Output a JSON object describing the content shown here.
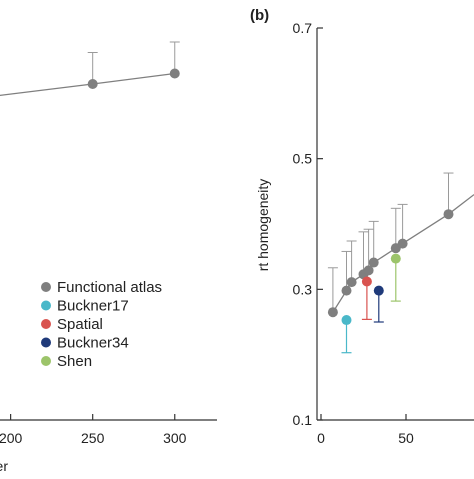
{
  "chart_data": [
    {
      "type": "line",
      "panel_label": "",
      "title": "",
      "xlabel": "er",
      "ylabel": "",
      "x_ticks": [
        200,
        250,
        300
      ],
      "xlim": [
        185,
        330
      ],
      "ylim": [
        0.0,
        0.8
      ],
      "series": [
        {
          "name": "Functional atlas",
          "color": "#7f7f7f",
          "x": [
            185,
            250,
            300
          ],
          "y": [
            0.615,
            0.64,
            0.66
          ],
          "err_upper": [
            0.68,
            0.7,
            0.72
          ]
        }
      ],
      "legend": {
        "placement": "bottom-right",
        "entries": [
          {
            "label": "Functional atlas",
            "color": "#7f7f7f"
          },
          {
            "label": "Buckner17",
            "color": "#4ab8c9"
          },
          {
            "label": "Spatial",
            "color": "#d9534f"
          },
          {
            "label": "Buckner34",
            "color": "#1f3a7a"
          },
          {
            "label": "Shen",
            "color": "#9cc46a"
          }
        ]
      }
    },
    {
      "type": "scatter",
      "panel_label": "(b)",
      "title": "",
      "xlabel": "",
      "ylabel": "rt homogeneity",
      "x_ticks": [
        0,
        50
      ],
      "y_ticks": [
        0.1,
        0.3,
        0.5,
        0.7
      ],
      "xlim": [
        0,
        90
      ],
      "ylim": [
        0.1,
        0.7
      ],
      "grid": false,
      "series": [
        {
          "name": "Functional atlas",
          "color": "#7f7f7f",
          "x": [
            7,
            15,
            18,
            25,
            28,
            31,
            44,
            48,
            75
          ],
          "y": [
            0.265,
            0.298,
            0.311,
            0.323,
            0.329,
            0.341,
            0.363,
            0.37,
            0.415
          ],
          "err_upper": [
            0.333,
            0.358,
            0.374,
            0.388,
            0.392,
            0.404,
            0.424,
            0.43,
            0.478
          ]
        },
        {
          "name": "Buckner17",
          "color": "#4ab8c9",
          "x": [
            15
          ],
          "y": [
            0.253
          ],
          "err_lower": [
            0.203
          ]
        },
        {
          "name": "Spatial",
          "color": "#d9534f",
          "x": [
            27
          ],
          "y": [
            0.312
          ],
          "err_lower": [
            0.254
          ]
        },
        {
          "name": "Buckner34",
          "color": "#1f3a7a",
          "x": [
            34
          ],
          "y": [
            0.298
          ],
          "err_lower": [
            0.25
          ]
        },
        {
          "name": "Shen",
          "color": "#9cc46a",
          "x": [
            44
          ],
          "y": [
            0.347
          ],
          "err_lower": [
            0.282
          ]
        }
      ]
    }
  ]
}
